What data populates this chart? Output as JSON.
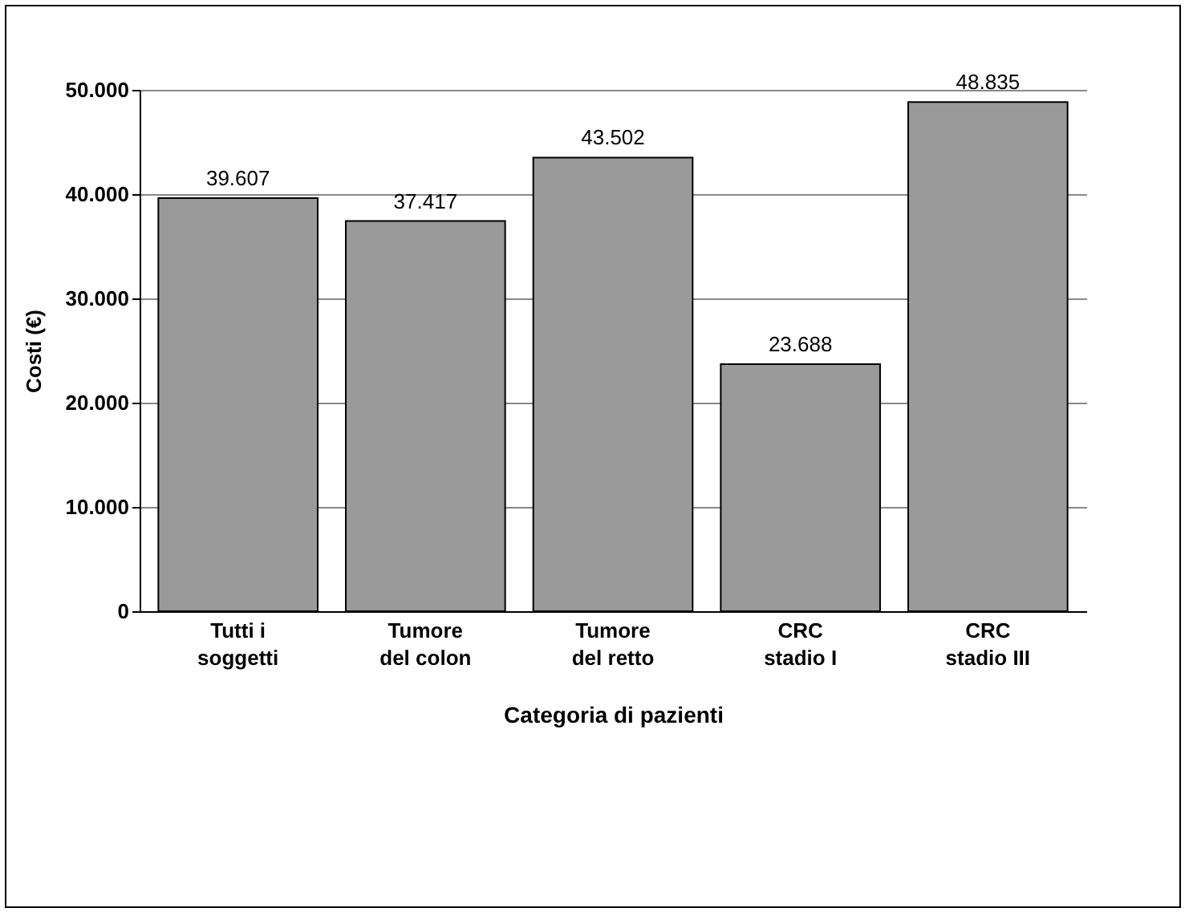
{
  "chart_data": {
    "type": "bar",
    "xlabel": "Categoria di pazienti",
    "ylabel": "Costi (€)",
    "categories": [
      "Tutti i\nsoggetti",
      "Tumore\ndel colon",
      "Tumore\ndel retto",
      "CRC\nstadio I",
      "CRC\nstadio III"
    ],
    "values": [
      39607,
      37417,
      43502,
      23688,
      48835
    ],
    "value_labels": [
      "39.607",
      "37.417",
      "43.502",
      "23.688",
      "48.835"
    ],
    "color": "#9a9a9a",
    "ylim": [
      0,
      50000
    ],
    "yticks": [
      {
        "value": 0,
        "label": "0"
      },
      {
        "value": 10000,
        "label": "10.000"
      },
      {
        "value": 20000,
        "label": "20.000"
      },
      {
        "value": 30000,
        "label": "30.000"
      },
      {
        "value": 40000,
        "label": "40.000"
      },
      {
        "value": 50000,
        "label": "50.000"
      }
    ],
    "grid": "y"
  }
}
